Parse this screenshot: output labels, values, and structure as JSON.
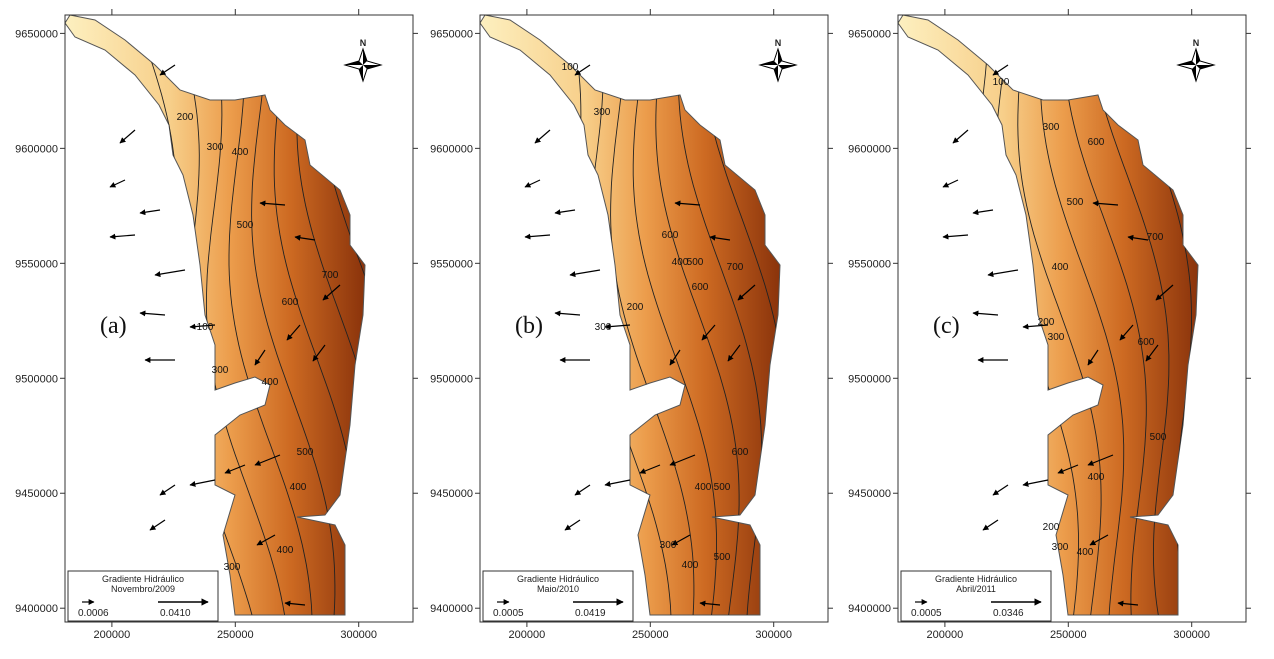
{
  "axes": {
    "xlim": [
      181000,
      322000
    ],
    "ylim": [
      9394000,
      9658000
    ],
    "xticks": [
      200000,
      250000,
      300000
    ],
    "yticks": [
      9400000,
      9450000,
      9500000,
      9550000,
      9600000,
      9650000
    ]
  },
  "north": "N",
  "panels": [
    {
      "label": "(a)",
      "legend": {
        "title": "Gradiente Hidráulico",
        "period": "Novembro/2009",
        "min": "0.0006",
        "max": "0.0410"
      },
      "contours": [
        "200",
        "300",
        "400",
        "500",
        "700",
        "600",
        "100",
        "300",
        "400",
        "500",
        "400",
        "300",
        "400"
      ]
    },
    {
      "label": "(b)",
      "legend": {
        "title": "Gradiente Hidráulico",
        "period": "Maio/2010",
        "min": "0.0005",
        "max": "0.0419"
      },
      "contours": [
        "100",
        "300",
        "600",
        "500",
        "400",
        "700",
        "600",
        "200",
        "300",
        "600",
        "400",
        "500",
        "300",
        "400",
        "500"
      ]
    },
    {
      "label": "(c)",
      "legend": {
        "title": "Gradiente Hidráulico",
        "period": "Abril/2011",
        "min": "0.0005",
        "max": "0.0346"
      },
      "contours": [
        "100",
        "300",
        "600",
        "500",
        "700",
        "400",
        "200",
        "300",
        "600",
        "500",
        "400",
        "300",
        "400",
        "200"
      ]
    }
  ]
}
